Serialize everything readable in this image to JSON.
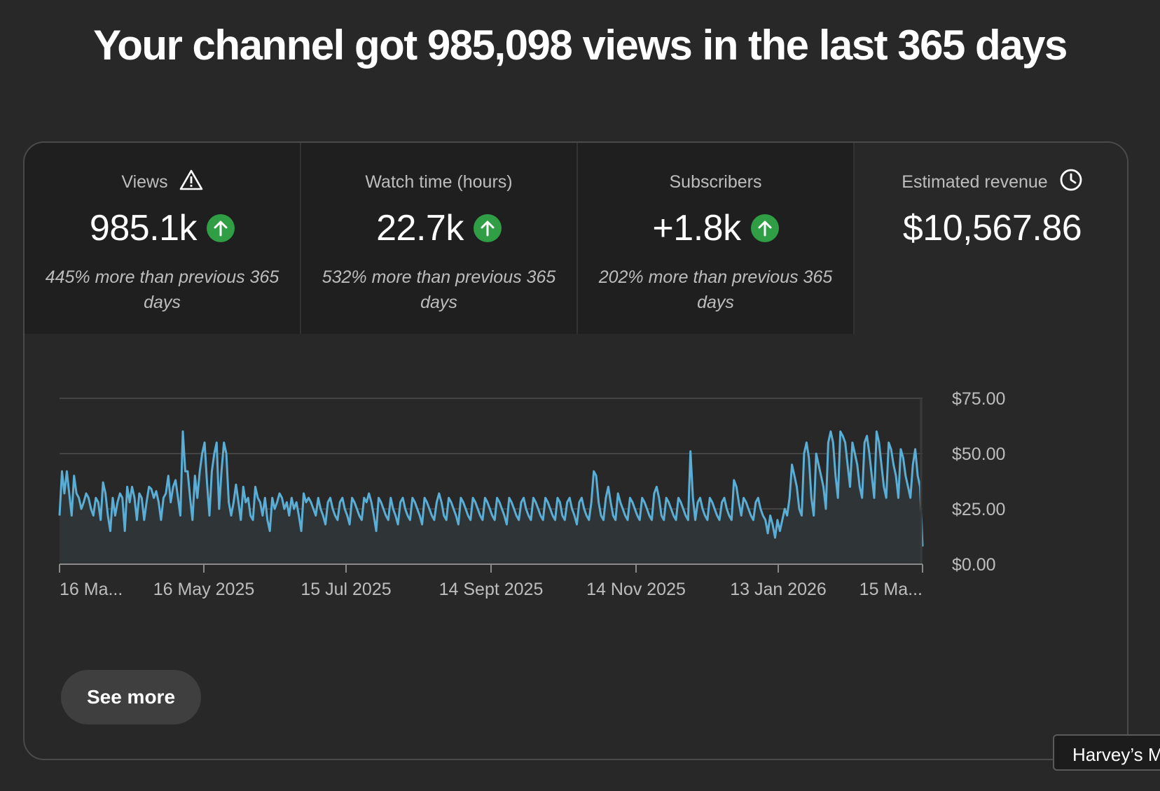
{
  "page": {
    "title": "Your channel got 985,098 views in the last 365 days"
  },
  "metrics": [
    {
      "label": "Views",
      "value": "985.1k",
      "trend": "up",
      "comparison": "445% more than previous 365 days",
      "icon": "warning-icon"
    },
    {
      "label": "Watch time (hours)",
      "value": "22.7k",
      "trend": "up",
      "comparison": "532% more than previous 365 days"
    },
    {
      "label": "Subscribers",
      "value": "+1.8k",
      "trend": "up",
      "comparison": "202% more than previous 365 days"
    },
    {
      "label": "Estimated revenue",
      "value": "$10,567.86",
      "icon": "clock-icon",
      "selected": true
    }
  ],
  "chart_data": {
    "type": "area",
    "title": "",
    "ylim": [
      0,
      75
    ],
    "y_ticks": [
      "$75.00",
      "$50.00",
      "$25.00",
      "$0.00"
    ],
    "x_ticks": [
      "16 Ma...",
      "16 May 2025",
      "15 Jul 2025",
      "14 Sept 2025",
      "14 Nov 2025",
      "13 Jan 2026",
      "15 Ma..."
    ],
    "grid": true,
    "colors": {
      "line": "#5aaed6",
      "fill": "#2f3437",
      "grid": "#444444",
      "axis": "#8a8a8a",
      "tick_text": "#bdbdbd"
    },
    "series": [
      {
        "values": [
          22,
          42,
          32,
          42,
          32,
          22,
          40,
          32,
          30,
          25,
          28,
          32,
          30,
          25,
          22,
          30,
          28,
          20,
          37,
          32,
          22,
          15,
          30,
          22,
          28,
          32,
          30,
          15,
          35,
          28,
          35,
          30,
          20,
          32,
          30,
          20,
          28,
          35,
          34,
          30,
          33,
          28,
          20,
          30,
          32,
          40,
          28,
          35,
          38,
          30,
          22,
          60,
          42,
          42,
          30,
          20,
          40,
          30,
          42,
          50,
          55,
          37,
          22,
          42,
          50,
          55,
          25,
          42,
          55,
          50,
          28,
          22,
          28,
          36,
          28,
          20,
          35,
          28,
          30,
          22,
          20,
          35,
          30,
          28,
          22,
          30,
          20,
          15,
          30,
          25,
          28,
          32,
          30,
          25,
          28,
          22,
          30,
          25,
          28,
          22,
          15,
          32,
          28,
          30,
          28,
          25,
          22,
          30,
          25,
          22,
          18,
          28,
          30,
          25,
          22,
          20,
          28,
          30,
          25,
          22,
          18,
          30,
          28,
          25,
          22,
          20,
          30,
          28,
          32,
          28,
          22,
          15,
          30,
          28,
          25,
          22,
          20,
          30,
          25,
          22,
          18,
          28,
          30,
          25,
          22,
          20,
          30,
          28,
          25,
          22,
          18,
          30,
          28,
          25,
          22,
          20,
          28,
          32,
          28,
          22,
          20,
          30,
          28,
          25,
          22,
          18,
          30,
          28,
          25,
          22,
          20,
          30,
          28,
          25,
          22,
          20,
          30,
          28,
          25,
          22,
          20,
          30,
          28,
          25,
          22,
          18,
          30,
          28,
          25,
          22,
          20,
          28,
          30,
          25,
          22,
          20,
          30,
          28,
          25,
          22,
          20,
          30,
          28,
          25,
          22,
          20,
          30,
          28,
          22,
          20,
          28,
          30,
          25,
          22,
          18,
          28,
          30,
          25,
          22,
          20,
          28,
          42,
          40,
          28,
          22,
          20,
          30,
          35,
          28,
          22,
          20,
          32,
          28,
          25,
          22,
          20,
          30,
          28,
          25,
          22,
          20,
          30,
          28,
          25,
          22,
          20,
          32,
          35,
          30,
          22,
          20,
          30,
          28,
          25,
          22,
          20,
          30,
          28,
          25,
          22,
          20,
          51,
          30,
          20,
          28,
          30,
          25,
          22,
          20,
          30,
          28,
          25,
          22,
          20,
          28,
          30,
          25,
          22,
          20,
          38,
          35,
          28,
          22,
          30,
          28,
          25,
          22,
          20,
          28,
          30,
          25,
          22,
          20,
          14,
          22,
          18,
          12,
          20,
          15,
          20,
          25,
          22,
          30,
          45,
          40,
          35,
          25,
          22,
          50,
          55,
          48,
          30,
          22,
          50,
          45,
          40,
          35,
          25,
          55,
          60,
          55,
          40,
          30,
          60,
          58,
          55,
          45,
          35,
          55,
          50,
          45,
          35,
          30,
          55,
          58,
          50,
          40,
          30,
          60,
          55,
          45,
          35,
          30,
          55,
          52,
          45,
          40,
          30,
          52,
          48,
          40,
          35,
          30,
          45,
          52,
          40,
          35,
          8
        ]
      }
    ]
  },
  "actions": {
    "see_more": "See more"
  },
  "tooltip": {
    "text": "Harvey’s M"
  }
}
